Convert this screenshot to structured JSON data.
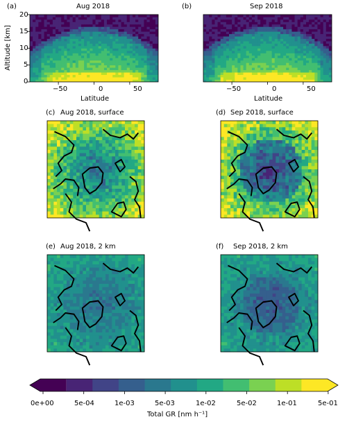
{
  "chart_data": [
    {
      "type": "heatmap",
      "panel": "(a)",
      "title": "Aug 2018",
      "xlabel": "Latitude",
      "ylabel": "Altitude [km]",
      "xlim": [
        -90,
        90
      ],
      "ylim": [
        0,
        20
      ],
      "xticks": [
        "−50",
        "0",
        "50"
      ],
      "yticks": [
        "0",
        "5",
        "10",
        "15",
        "20"
      ]
    },
    {
      "type": "heatmap",
      "panel": "(b)",
      "title": "Sep 2018",
      "xlabel": "Latitude",
      "ylabel": "",
      "xlim": [
        -90,
        90
      ],
      "ylim": [
        0,
        20
      ],
      "xticks": [
        "−50",
        "0",
        "50"
      ],
      "yticks": []
    },
    {
      "type": "heatmap",
      "panel": "(c)",
      "title": "Aug 2018, surface"
    },
    {
      "type": "heatmap",
      "panel": "(d)",
      "title": "Sep 2018, surface"
    },
    {
      "type": "heatmap",
      "panel": "(e)",
      "title": "Aug 2018, 2 km"
    },
    {
      "type": "heatmap",
      "panel": "(f)",
      "title": "Sep 2018, 2 km"
    }
  ],
  "colorbar": {
    "label": "Total GR [nm h⁻¹]",
    "tick_labels": [
      "0e+00",
      "5e-04",
      "1e-03",
      "5e-03",
      "1e-02",
      "5e-02",
      "1e-01",
      "5e-01"
    ],
    "colors": [
      "#440154",
      "#482475",
      "#414487",
      "#355f8d",
      "#2a788e",
      "#21908d",
      "#22a884",
      "#42be71",
      "#7ad151",
      "#bddf26",
      "#fde725"
    ]
  }
}
